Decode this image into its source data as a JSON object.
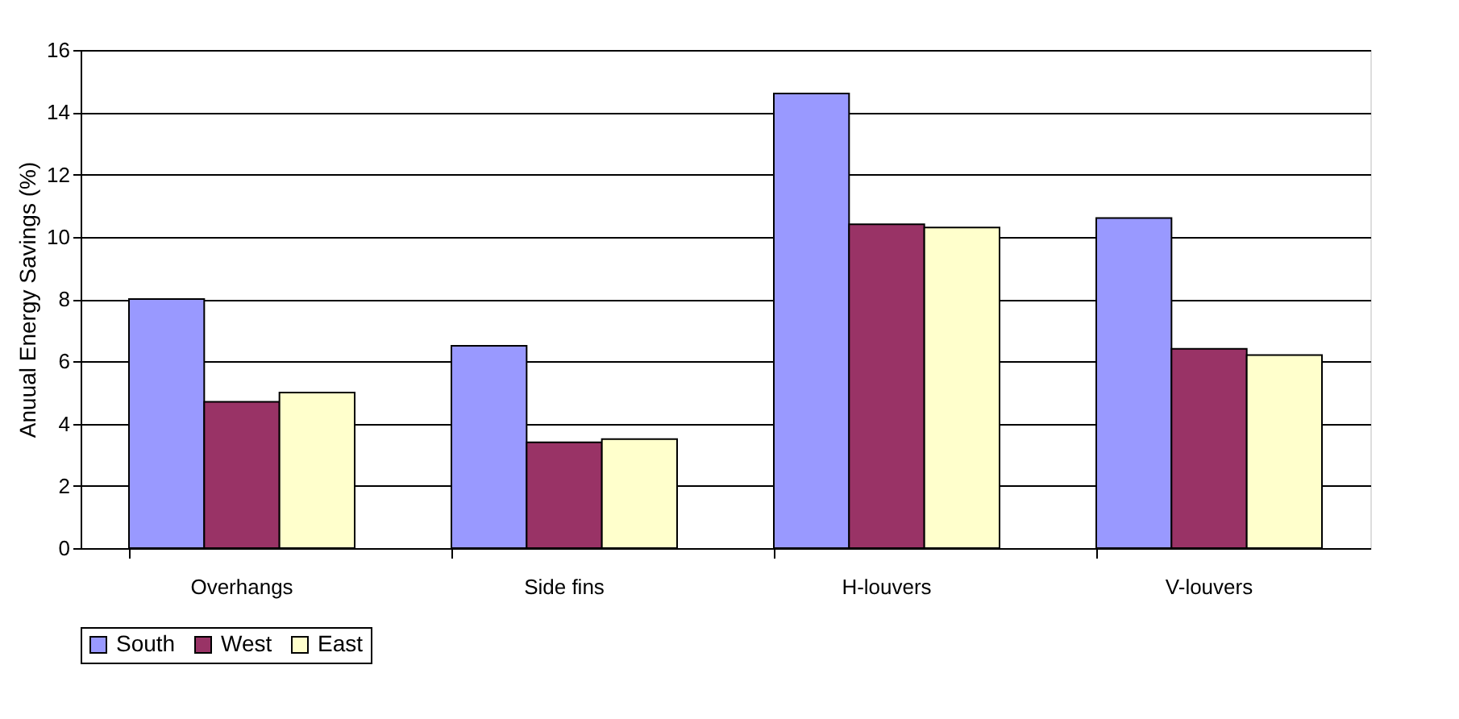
{
  "chart_data": {
    "type": "bar",
    "ylabel": "Anuual Energy Savings (%)",
    "categories": [
      "Overhangs",
      "Side fins",
      "H-louvers",
      "V-louvers"
    ],
    "series": [
      {
        "name": "South",
        "color": "#9999ff",
        "values": [
          8.0,
          6.5,
          14.6,
          10.6
        ]
      },
      {
        "name": "West",
        "color": "#993366",
        "values": [
          4.7,
          3.4,
          10.4,
          6.4
        ]
      },
      {
        "name": "East",
        "color": "#ffffcc",
        "values": [
          5.0,
          3.5,
          10.3,
          6.2
        ]
      }
    ],
    "ylim": [
      0,
      16
    ],
    "yticks": [
      0,
      2,
      4,
      6,
      8,
      10,
      12,
      14,
      16
    ],
    "grid": "y",
    "legend": "bottom"
  }
}
